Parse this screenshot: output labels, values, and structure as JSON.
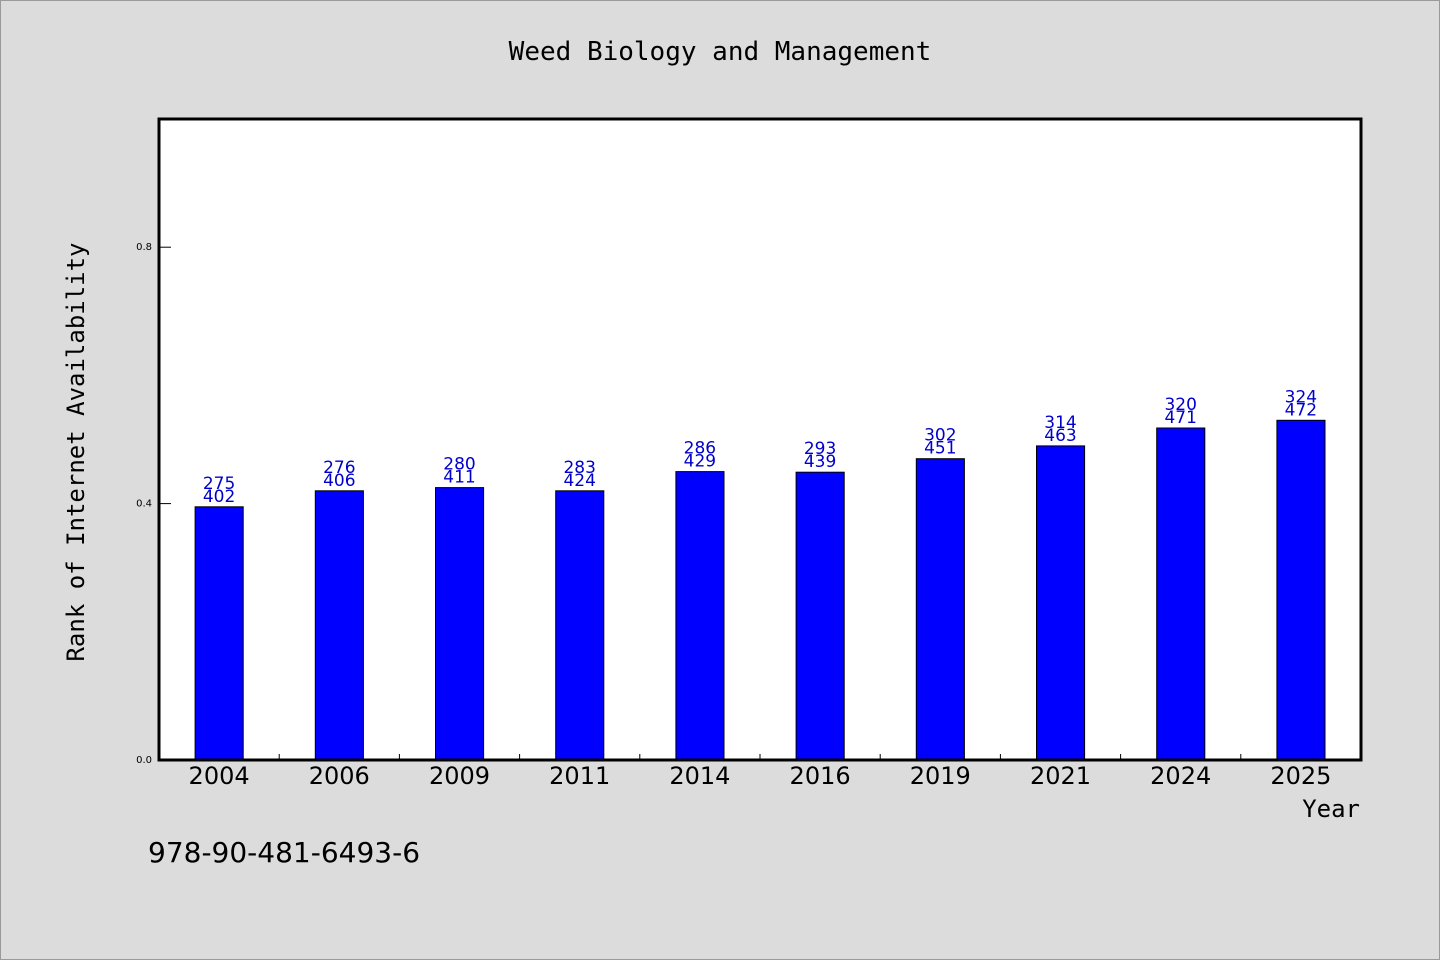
{
  "chart_data": {
    "type": "bar",
    "title": "Weed Biology and Management",
    "xlabel": "Year",
    "ylabel": "Rank of Internet Availability",
    "categories": [
      "2004",
      "2006",
      "2009",
      "2011",
      "2014",
      "2016",
      "2019",
      "2021",
      "2024",
      "2025"
    ],
    "values": [
      0.395,
      0.42,
      0.425,
      0.42,
      0.45,
      0.449,
      0.47,
      0.49,
      0.518,
      0.53
    ],
    "labels_top": [
      "275",
      "276",
      "280",
      "283",
      "286",
      "293",
      "302",
      "314",
      "320",
      "324"
    ],
    "labels_bottom": [
      "402",
      "406",
      "411",
      "424",
      "429",
      "439",
      "451",
      "463",
      "471",
      "472"
    ],
    "ylim": [
      0,
      1.0
    ],
    "yticks": [
      "0.0",
      "0.4",
      "0.8"
    ],
    "ytick_values": [
      0,
      0.4,
      0.8
    ],
    "grid": false,
    "legend": "none",
    "colors": {
      "bar": "#0000ff",
      "label": "#0000cc",
      "background": "#dcdcdc",
      "plot": "#ffffff"
    }
  },
  "footer": {
    "isbn": "978-90-481-6493-6"
  }
}
